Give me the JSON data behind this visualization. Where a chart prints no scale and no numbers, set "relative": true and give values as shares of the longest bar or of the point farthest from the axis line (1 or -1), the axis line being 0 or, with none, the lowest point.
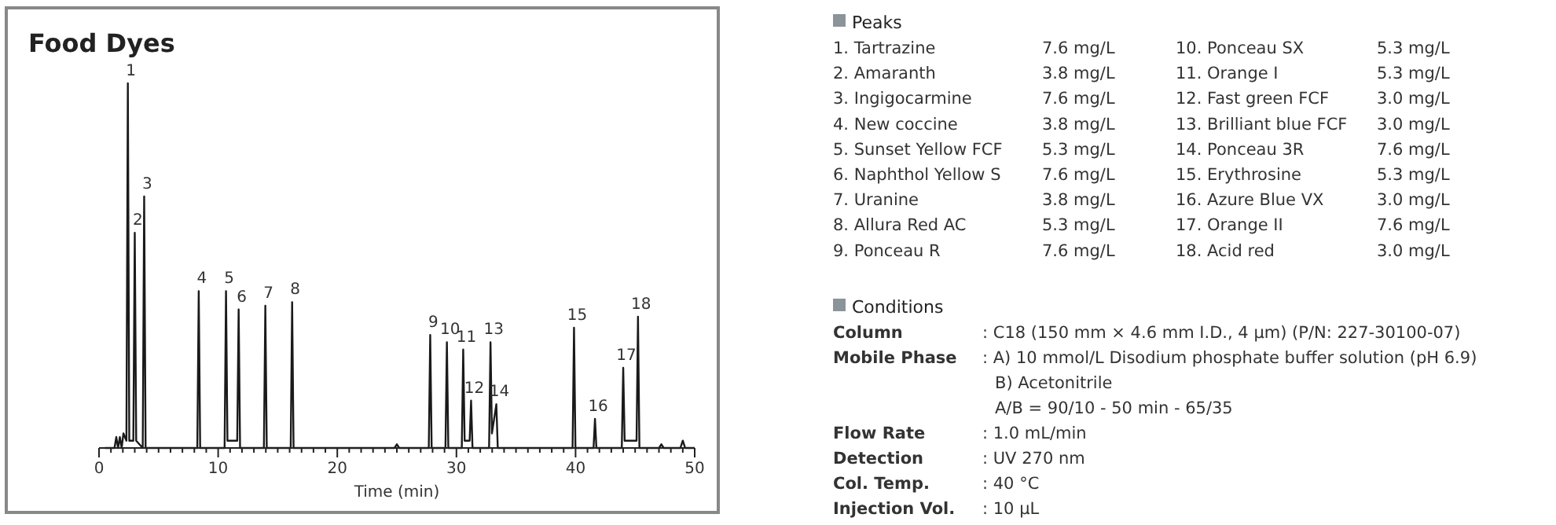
{
  "chart_data": [
    {
      "type": "line",
      "title": "Food Dyes",
      "xlabel": "Time (min)",
      "relative": true,
      "xlim": [
        0,
        50
      ],
      "xticks": [
        0,
        {
          "value": 1,
          "label": null
        },
        {
          "value": 2,
          "label": null
        },
        {
          "value": 3,
          "label": null
        },
        {
          "value": 4,
          "label": null
        },
        {
          "value": 5,
          "label": null
        },
        {
          "value": 6,
          "label": null
        },
        {
          "value": 7,
          "label": null
        },
        {
          "value": 8,
          "label": null
        },
        {
          "value": 9,
          "label": null
        },
        10,
        {
          "value": 11,
          "label": null
        },
        {
          "value": 12,
          "label": null
        },
        {
          "value": 13,
          "label": null
        },
        {
          "value": 14,
          "label": null
        },
        {
          "value": 15,
          "label": null
        },
        {
          "value": 16,
          "label": null
        },
        {
          "value": 17,
          "label": null
        },
        {
          "value": 18,
          "label": null
        },
        {
          "value": 19,
          "label": null
        },
        20,
        {
          "value": 21,
          "label": null
        },
        {
          "value": 22,
          "label": null
        },
        {
          "value": 23,
          "label": null
        },
        {
          "value": 24,
          "label": null
        },
        {
          "value": 25,
          "label": null
        },
        {
          "value": 26,
          "label": null
        },
        {
          "value": 27,
          "label": null
        },
        {
          "value": 28,
          "label": null
        },
        {
          "value": 29,
          "label": null
        },
        30,
        {
          "value": 31,
          "label": null
        },
        {
          "value": 32,
          "label": null
        },
        {
          "value": 33,
          "label": null
        },
        {
          "value": 34,
          "label": null
        },
        {
          "value": 35,
          "label": null
        },
        {
          "value": 36,
          "label": null
        },
        {
          "value": 37,
          "label": null
        },
        {
          "value": 38,
          "label": null
        },
        {
          "value": 39,
          "label": null
        },
        40,
        {
          "value": 41,
          "label": null
        },
        {
          "value": 42,
          "label": null
        },
        {
          "value": 43,
          "label": null
        },
        {
          "value": 44,
          "label": null
        },
        {
          "value": 45,
          "label": null
        },
        {
          "value": 46,
          "label": null
        },
        {
          "value": 47,
          "label": null
        },
        {
          "value": 48,
          "label": null
        },
        {
          "value": 49,
          "label": null
        },
        50
      ],
      "series": [
        {
          "color": "#1a1a1a",
          "x": [
            0.5,
            1.3,
            1.45,
            1.6,
            1.75,
            1.9,
            2.05,
            2.3,
            2.42,
            2.54,
            2.88,
            3.0,
            3.12,
            3.67,
            3.79,
            3.91,
            8.25,
            8.37,
            8.49,
            10.54,
            10.66,
            10.78,
            11.6,
            11.72,
            11.84,
            13.84,
            13.96,
            14.08,
            16.09,
            16.21,
            16.33,
            24.8,
            25.0,
            25.2,
            27.68,
            27.8,
            27.92,
            29.08,
            29.2,
            29.32,
            30.45,
            30.57,
            30.69,
            31.11,
            31.23,
            31.35,
            32.74,
            32.86,
            32.98,
            33.35,
            33.47,
            39.75,
            39.87,
            39.99,
            41.51,
            41.63,
            41.75,
            43.88,
            44.0,
            44.12,
            45.12,
            45.24,
            45.36,
            47.0,
            47.2,
            47.4,
            48.8,
            49.0,
            49.2,
            50
          ],
          "values": [
            0,
            0,
            0.03,
            0,
            0.03,
            0,
            0.04,
            0.02,
            1.0,
            0.02,
            0.02,
            0.59,
            0.02,
            0,
            0.69,
            0,
            0,
            0.43,
            0,
            0,
            0.43,
            0.02,
            0.02,
            0.38,
            0,
            0,
            0.39,
            0,
            0,
            0.4,
            0,
            0,
            0.01,
            0,
            0,
            0.31,
            0,
            0,
            0.29,
            0,
            0,
            0.27,
            0.02,
            0.02,
            0.13,
            0,
            0,
            0.29,
            0.04,
            0.12,
            0,
            0,
            0.33,
            0,
            0,
            0.08,
            0,
            0,
            0.22,
            0.02,
            0.02,
            0.36,
            0,
            0,
            0.01,
            0,
            0,
            0.02,
            0,
            0
          ]
        }
      ],
      "annotations": [
        {
          "text": "1",
          "x": 2.42,
          "y": 1.0
        },
        {
          "text": "2",
          "x": 3.0,
          "y": 0.59
        },
        {
          "text": "3",
          "x": 3.79,
          "y": 0.69
        },
        {
          "text": "4",
          "x": 8.37,
          "y": 0.43
        },
        {
          "text": "5",
          "x": 10.66,
          "y": 0.43
        },
        {
          "text": "6",
          "x": 11.72,
          "y": 0.38
        },
        {
          "text": "7",
          "x": 13.96,
          "y": 0.39
        },
        {
          "text": "8",
          "x": 16.21,
          "y": 0.4
        },
        {
          "text": "9",
          "x": 27.8,
          "y": 0.31
        },
        {
          "text": "10",
          "x": 29.2,
          "y": 0.29
        },
        {
          "text": "11",
          "x": 30.57,
          "y": 0.27
        },
        {
          "text": "12",
          "x": 31.23,
          "y": 0.13
        },
        {
          "text": "13",
          "x": 32.86,
          "y": 0.29
        },
        {
          "text": "14",
          "x": 33.35,
          "y": 0.12
        },
        {
          "text": "15",
          "x": 39.87,
          "y": 0.33
        },
        {
          "text": "16",
          "x": 41.63,
          "y": 0.08
        },
        {
          "text": "17",
          "x": 44.0,
          "y": 0.22
        },
        {
          "text": "18",
          "x": 45.24,
          "y": 0.36
        }
      ]
    },
    {
      "type": "other",
      "title": "Peaks",
      "categories": [
        "1. Tartrazine",
        "2. Amaranth",
        "3. Ingigocarmine",
        "4. New coccine",
        "5. Sunset Yellow FCF",
        "6. Naphthol Yellow S",
        "7. Uranine",
        "8. Allura Red AC",
        "9. Ponceau R",
        "10. Ponceau SX",
        "11. Orange I",
        "12. Fast green FCF",
        "13. Brilliant blue FCF",
        "14. Ponceau 3R",
        "15. Erythrosine",
        "16. Azure Blue VX",
        "17. Orange II",
        "18. Acid red"
      ],
      "annotations": [
        "7.6 mg/L",
        "3.8 mg/L",
        "7.6 mg/L",
        "3.8 mg/L",
        "5.3 mg/L",
        "7.6 mg/L",
        "3.8 mg/L",
        "5.3 mg/L",
        "7.6 mg/L",
        "5.3 mg/L",
        "5.3 mg/L",
        "3.0 mg/L",
        "3.0 mg/L",
        "7.6 mg/L",
        "5.3 mg/L",
        "3.0 mg/L",
        "7.6 mg/L",
        "3.0 mg/L"
      ]
    },
    {
      "type": "other",
      "title": "Conditions",
      "categories": [
        "Column",
        "Mobile Phase",
        null,
        null,
        "Flow Rate",
        "Detection",
        "Col. Temp.",
        "Injection Vol."
      ],
      "annotations": [
        ": C18 (150 mm × 4.6 mm I.D., 4 µm) (P/N: 227-30100-07)",
        ": A) 10 mmol/L Disodium phosphate buffer solution (pH 6.9)",
        "B) Acetonitrile",
        "A/B = 90/10 - 50 min - 65/35",
        ": 1.0 mL/min",
        ": UV 270 nm",
        ": 40 °C",
        ": 10 µL"
      ]
    }
  ]
}
